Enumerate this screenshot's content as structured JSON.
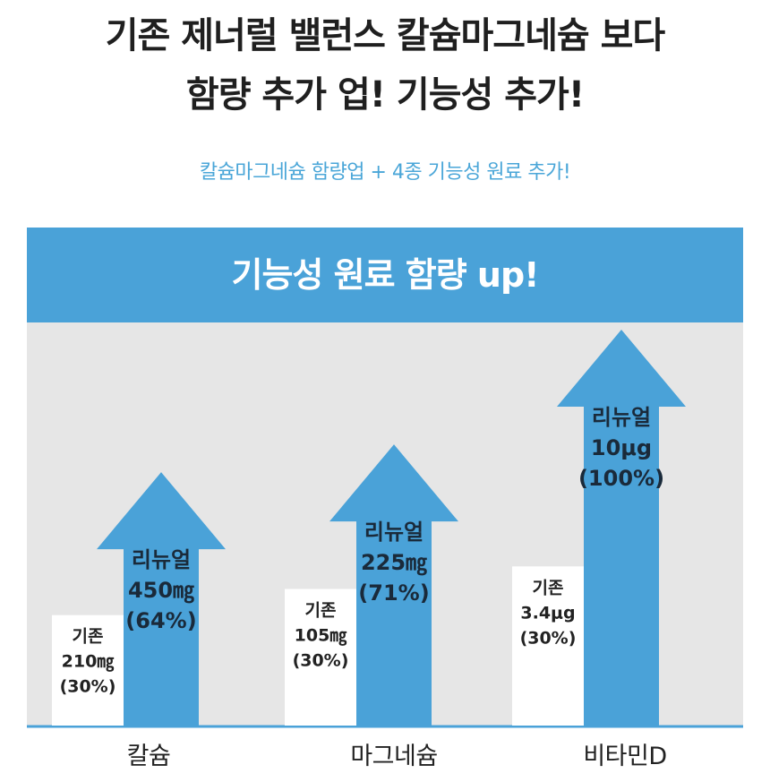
{
  "header": {
    "line1": "기존 제너럴 밸런스 칼슘마그네슘 보다",
    "line2": "함량 추가 업! 기능성 추가!",
    "sub": "칼슘마그네슘 함량업 + 4종 기능성 원료 추가!"
  },
  "panel_title": "기능성 원료 함량 up!",
  "colors": {
    "accent": "#4aa2d8",
    "sub_text": "#4aa6d8",
    "panel_bg": "#e6e6e6",
    "old_bar": "#ffffff"
  },
  "chart_data": {
    "type": "bar",
    "title": "기능성 원료 함량 up!",
    "categories": [
      "칼슘",
      "마그네슘",
      "비타민D"
    ],
    "series": [
      {
        "name": "기존",
        "values": [
          30,
          30,
          30
        ],
        "amounts": [
          "210㎎",
          "105㎎",
          "3.4μg"
        ],
        "percents": [
          "(30%)",
          "(30%)",
          "(30%)"
        ]
      },
      {
        "name": "리뉴얼",
        "values": [
          64,
          71,
          100
        ],
        "amounts": [
          "450㎎",
          "225㎎",
          "10μg"
        ],
        "percents": [
          "(64%)",
          "(71%)",
          "(100%)"
        ]
      }
    ],
    "xlabel": "",
    "ylabel": "",
    "grid": false
  }
}
